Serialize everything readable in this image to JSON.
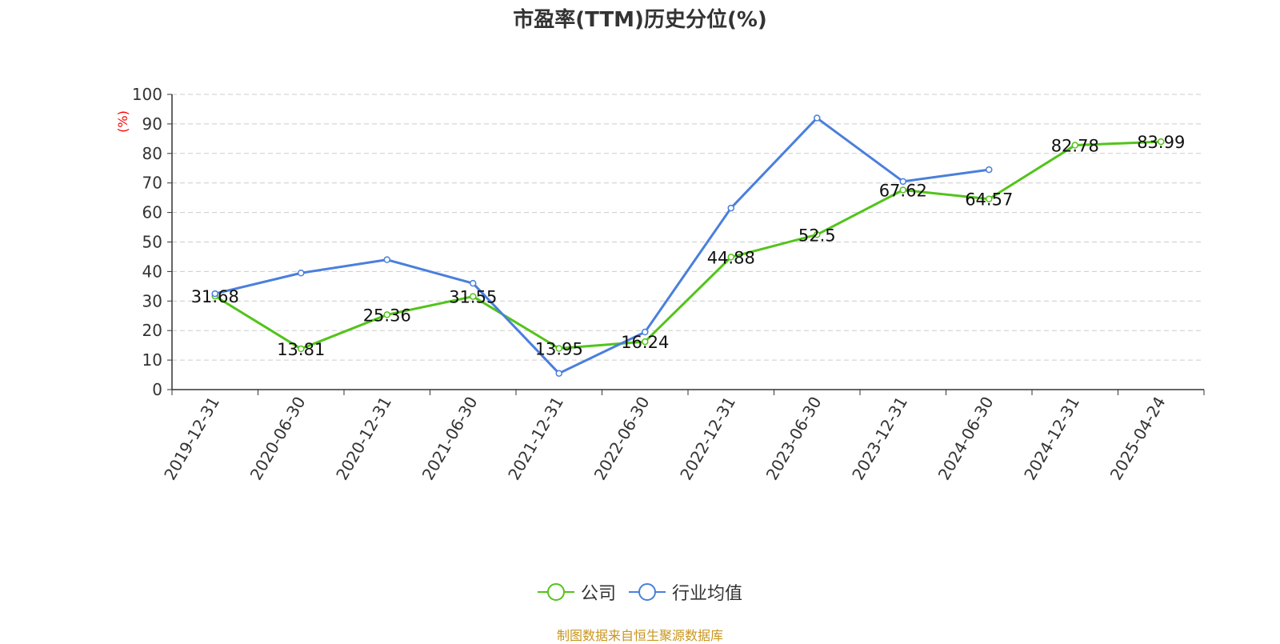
{
  "chart_data": {
    "type": "line",
    "title": "市盈率(TTM)历史分位(%)",
    "ylabel": "(%)",
    "xlabel": "",
    "ylim": [
      0,
      100
    ],
    "yticks": [
      0,
      10,
      20,
      30,
      40,
      50,
      60,
      70,
      80,
      90,
      100
    ],
    "grid": "horizontal-dashed",
    "legend_position": "bottom",
    "categories": [
      "2019-12-31",
      "2020-06-30",
      "2020-12-31",
      "2021-06-30",
      "2021-12-31",
      "2022-06-30",
      "2022-12-31",
      "2023-06-30",
      "2023-12-31",
      "2024-06-30",
      "2024-12-31",
      "2025-04-24"
    ],
    "series": [
      {
        "name": "公司",
        "color": "#52c41a",
        "values": [
          31.68,
          13.81,
          25.36,
          31.55,
          13.95,
          16.24,
          44.88,
          52.5,
          67.62,
          64.57,
          82.78,
          83.99
        ],
        "data_labels": [
          "31.68",
          "13.81",
          "25.36",
          "31.55",
          "13.95",
          "16.24",
          "44.88",
          "52.5",
          "67.62",
          "64.57",
          "82.78",
          "83.99"
        ]
      },
      {
        "name": "行业均值",
        "color": "#4a7fdc",
        "values": [
          32.5,
          39.5,
          44.0,
          36.0,
          5.5,
          19.5,
          61.5,
          92.0,
          70.5,
          74.5,
          null,
          null
        ]
      }
    ]
  },
  "source": "制图数据来自恒生聚源数据库",
  "colors": {
    "title": "#333333",
    "axis": "#333333",
    "ylabel": "#ff0000",
    "grid": "#cccccc",
    "source": "#c8961e"
  }
}
